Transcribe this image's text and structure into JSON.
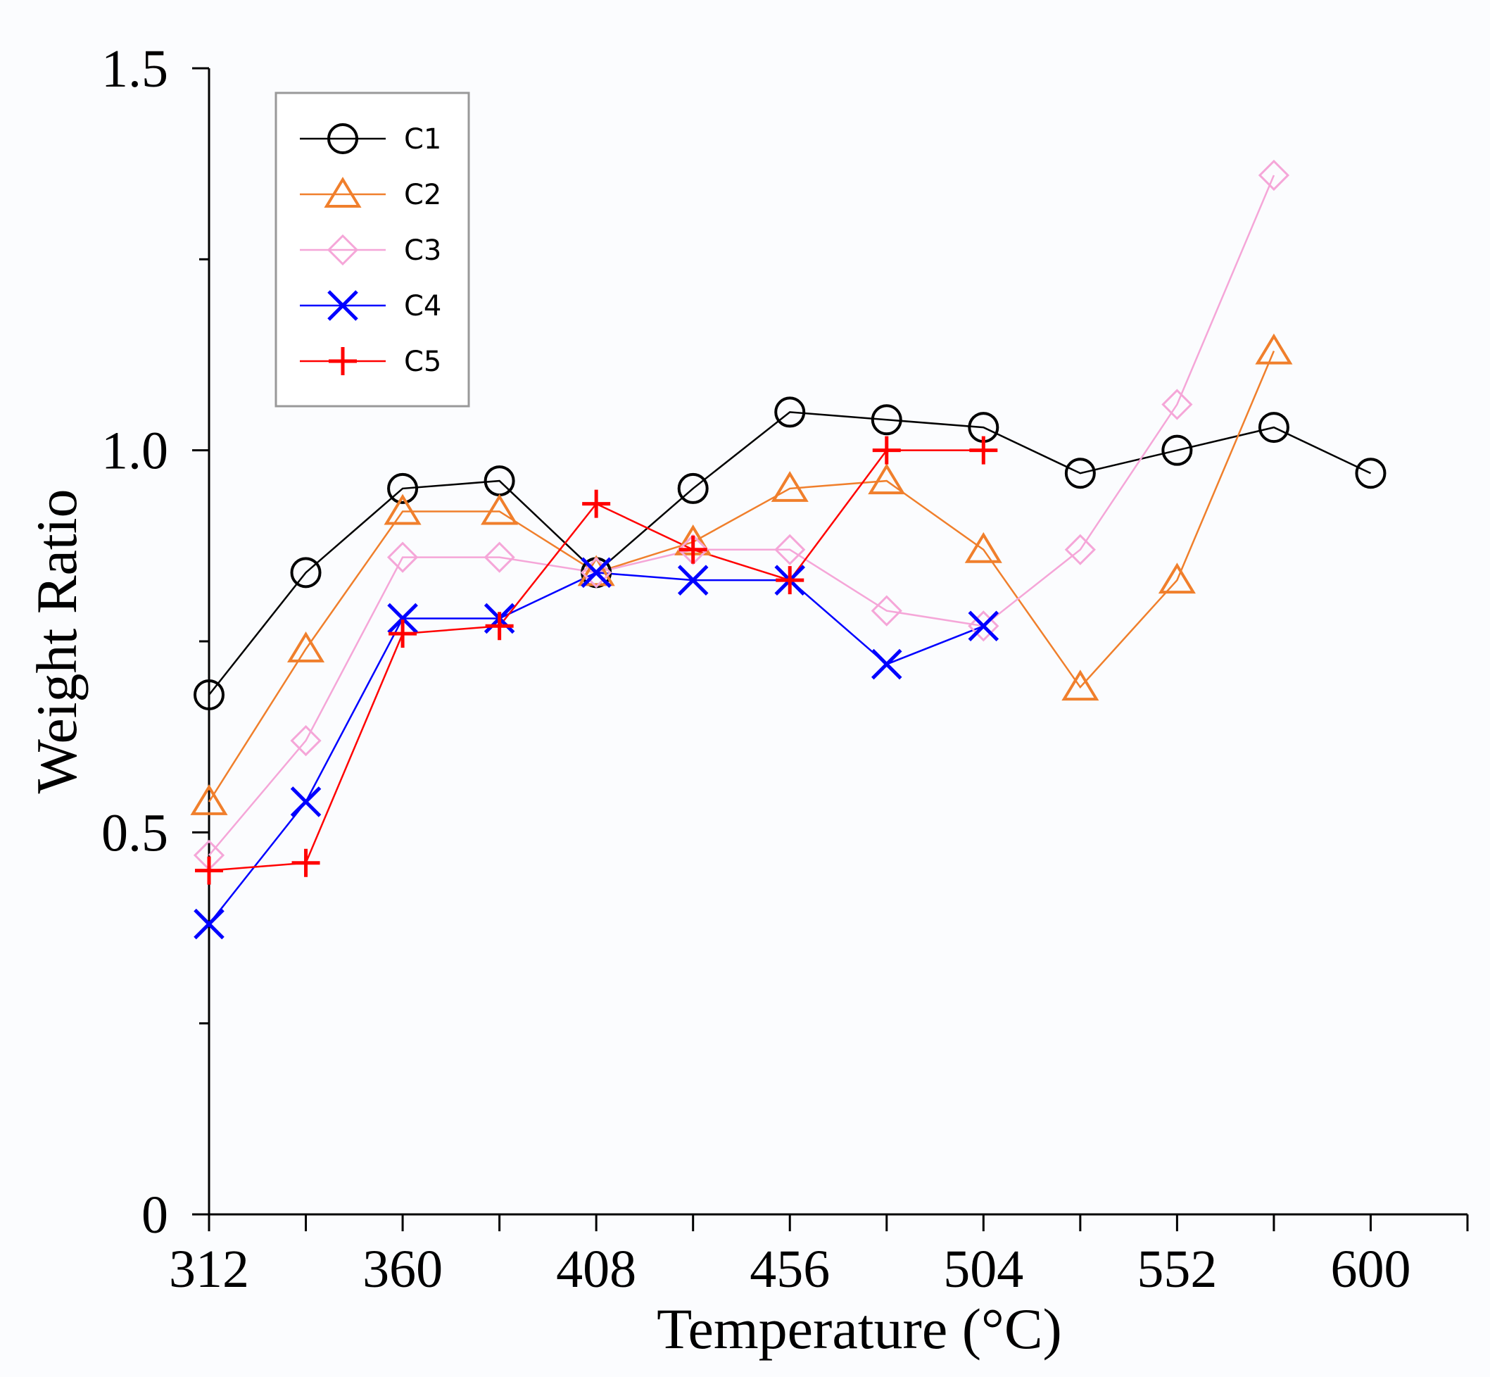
{
  "chart_data": {
    "type": "line",
    "title": "",
    "xlabel": "Temperature (°C)",
    "ylabel": "Weight Ratio",
    "xlim": [
      312,
      624
    ],
    "ylim": [
      0,
      1.5
    ],
    "x_ticks": [
      312,
      336,
      360,
      384,
      408,
      432,
      456,
      480,
      504,
      528,
      552,
      576,
      600,
      624
    ],
    "x_tick_labels": [
      {
        "value": 312,
        "label": "312"
      },
      {
        "value": 360,
        "label": "360"
      },
      {
        "value": 408,
        "label": "408"
      },
      {
        "value": 456,
        "label": "456"
      },
      {
        "value": 504,
        "label": "504"
      },
      {
        "value": 552,
        "label": "552"
      },
      {
        "value": 600,
        "label": "600"
      }
    ],
    "y_major_ticks": [
      {
        "value": 0,
        "label": "0"
      },
      {
        "value": 0.5,
        "label": "0.5"
      },
      {
        "value": 1.0,
        "label": "1.0"
      },
      {
        "value": 1.5,
        "label": "1.5"
      }
    ],
    "y_minor_ticks": [
      0.25,
      0.75,
      1.25
    ],
    "grid": false,
    "legend_position": "top-left",
    "series": [
      {
        "name": "C1",
        "color": "#000000",
        "marker": "circle",
        "x": [
          312,
          336,
          360,
          384,
          408,
          432,
          456,
          480,
          504,
          528,
          552,
          576,
          600
        ],
        "y": [
          0.68,
          0.84,
          0.95,
          0.96,
          0.84,
          0.95,
          1.05,
          1.04,
          1.03,
          0.97,
          1.0,
          1.03,
          0.97
        ]
      },
      {
        "name": "C2",
        "color": "#f07f2c",
        "marker": "triangle",
        "x": [
          312,
          336,
          360,
          384,
          408,
          432,
          456,
          480,
          504,
          528,
          552,
          576
        ],
        "y": [
          0.54,
          0.74,
          0.92,
          0.92,
          0.84,
          0.88,
          0.95,
          0.96,
          0.87,
          0.69,
          0.83,
          1.13
        ]
      },
      {
        "name": "C3",
        "color": "#f5a6d8",
        "marker": "diamond",
        "x": [
          312,
          336,
          360,
          384,
          408,
          432,
          456,
          480,
          504,
          528,
          552,
          576
        ],
        "y": [
          0.47,
          0.62,
          0.86,
          0.86,
          0.84,
          0.87,
          0.87,
          0.79,
          0.77,
          0.87,
          1.06,
          1.36
        ]
      },
      {
        "name": "C4",
        "color": "#0000ff",
        "marker": "x",
        "x": [
          312,
          336,
          360,
          384,
          408,
          432,
          456,
          480,
          504
        ],
        "y": [
          0.38,
          0.54,
          0.78,
          0.78,
          0.84,
          0.83,
          0.83,
          0.72,
          0.77
        ]
      },
      {
        "name": "C5",
        "color": "#ff0000",
        "marker": "plus",
        "x": [
          312,
          336,
          360,
          384,
          408,
          432,
          456,
          480,
          504
        ],
        "y": [
          0.45,
          0.46,
          0.76,
          0.77,
          0.93,
          0.87,
          0.83,
          1.0,
          1.0
        ]
      }
    ]
  }
}
